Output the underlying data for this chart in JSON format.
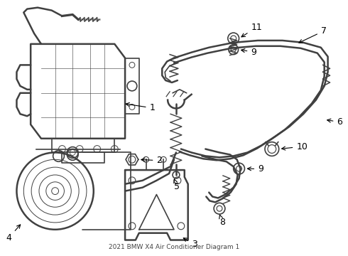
{
  "title": "2021 BMW X4 Air Conditioner Diagram 1",
  "background_color": "#ffffff",
  "line_color": "#404040",
  "label_color": "#000000",
  "figsize": [
    4.9,
    3.6
  ],
  "dpi": 100
}
